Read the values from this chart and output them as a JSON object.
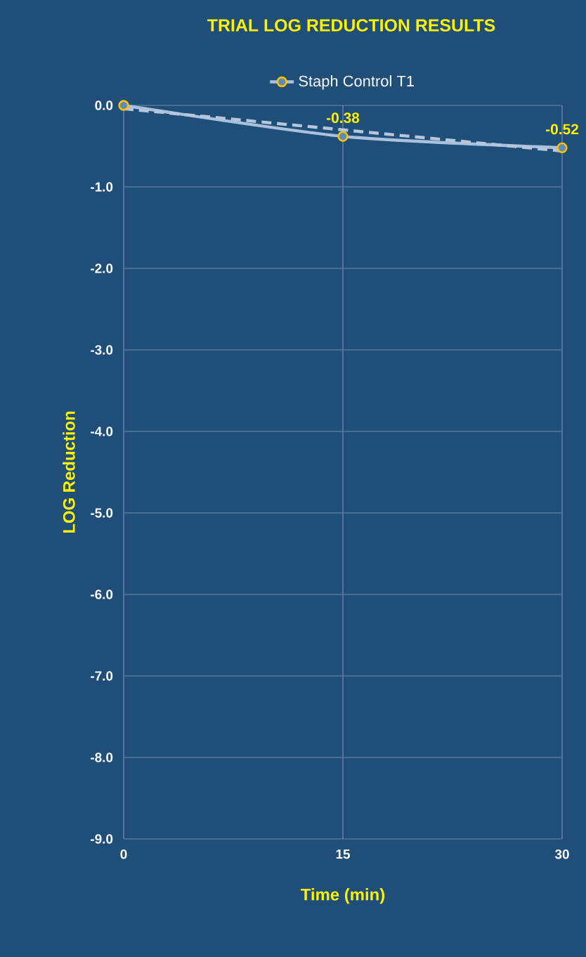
{
  "chart_data": {
    "type": "line",
    "title": "TRIAL LOG REDUCTION RESULTS",
    "xlabel": "Time (min)",
    "ylabel": "LOG Reduction",
    "x": [
      0,
      15,
      30
    ],
    "series": [
      {
        "name": "Staph Control T1",
        "color": "#a9c1dc",
        "values": [
          0.0,
          -0.38,
          -0.52
        ],
        "value_labels": [
          null,
          "-0.38",
          "-0.52"
        ],
        "marker": "circle",
        "line_style": "solid"
      },
      {
        "type": "line",
        "x": [
          0,
          30
        ],
        "values": [
          -0.04,
          -0.56
        ],
        "color": "#b4c7dc",
        "marker": "none",
        "line_style": "dashed"
      }
    ],
    "xlim": [
      0,
      30
    ],
    "xticks": [
      0,
      15,
      30
    ],
    "ylim": [
      -9,
      0
    ],
    "yticks": [
      {
        "value": -9,
        "label": "-9.0"
      },
      {
        "value": -8,
        "label": "-8.0"
      },
      {
        "value": -7,
        "label": "-7.0"
      },
      {
        "value": -6,
        "label": "-6.0"
      },
      {
        "value": -5,
        "label": "-5.0"
      },
      {
        "value": -4,
        "label": "-4.0"
      },
      {
        "value": -3,
        "label": "-3.0"
      },
      {
        "value": -2,
        "label": "-2.0"
      },
      {
        "value": -1,
        "label": "-1.0"
      },
      {
        "value": 0,
        "label": "0.0"
      }
    ],
    "grid": true,
    "legend": "top"
  }
}
